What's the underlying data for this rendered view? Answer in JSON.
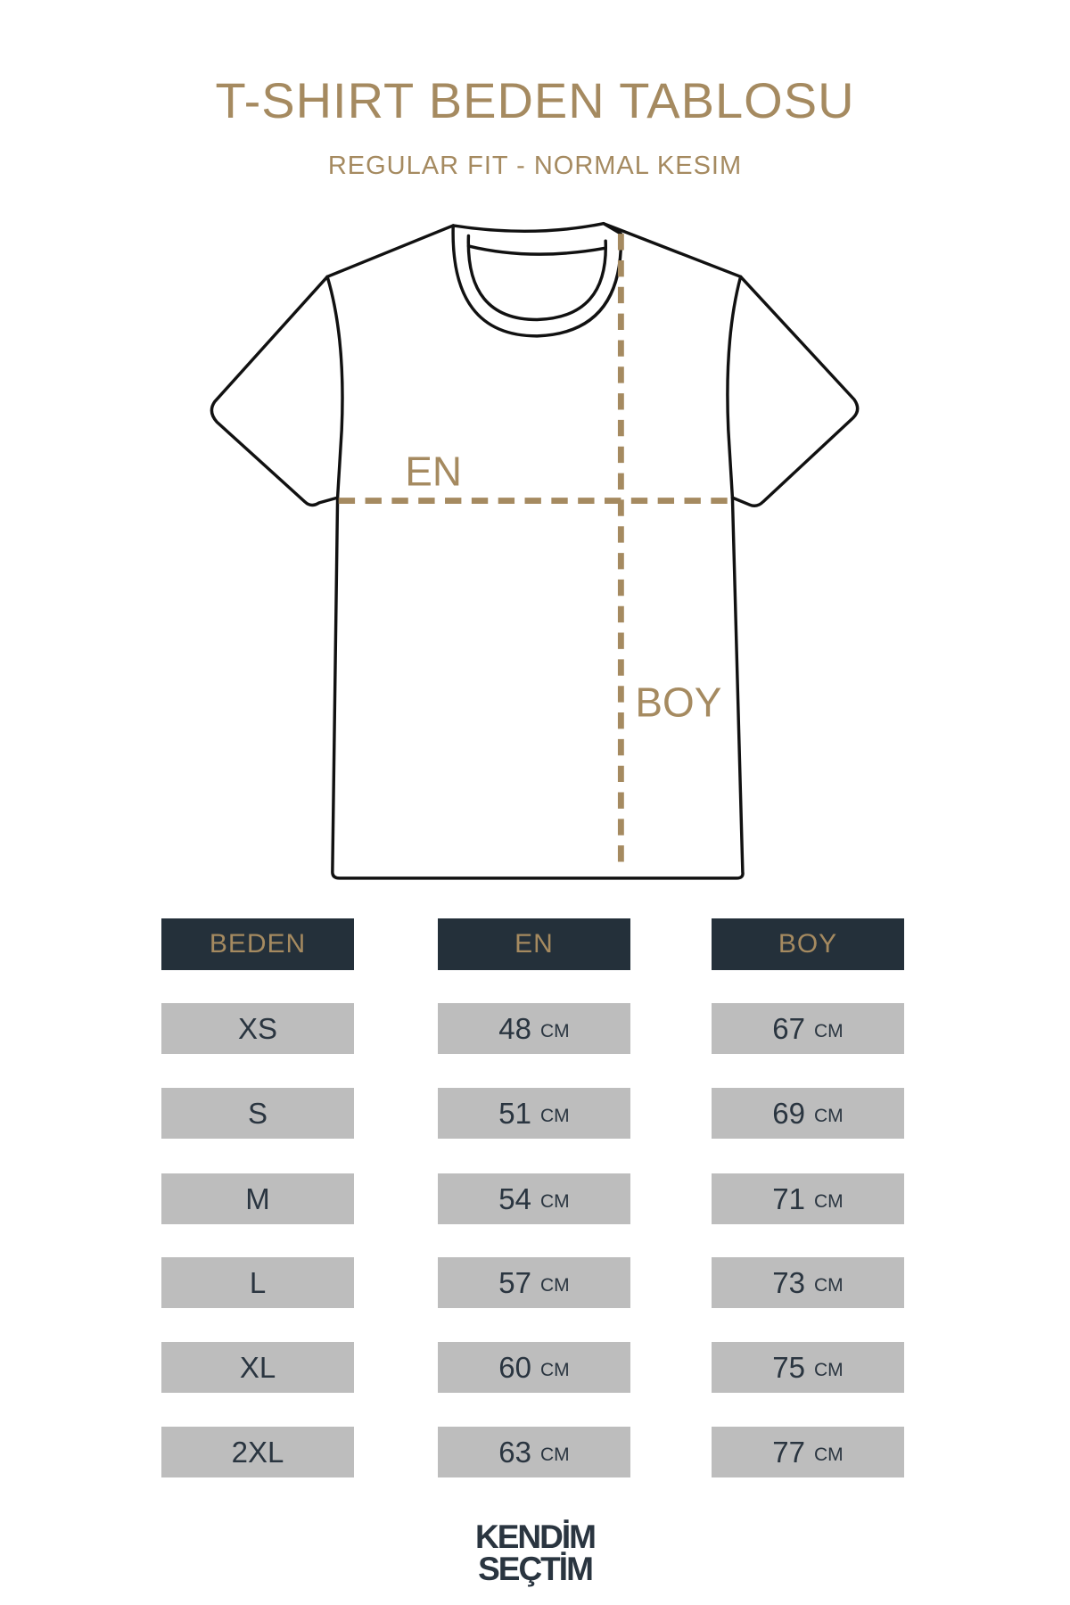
{
  "title": "T-SHIRT BEDEN TABLOSU",
  "subtitle": "REGULAR FIT - NORMAL KESIM",
  "diagram": {
    "en_label": "EN",
    "boy_label": "BOY"
  },
  "colors": {
    "accent": "#a58a60",
    "header_bg": "#24303a",
    "cell_bg": "#bdbdbd",
    "text_dark": "#2a3540"
  },
  "table": {
    "headers": [
      "BEDEN",
      "EN",
      "BOY"
    ],
    "unit": "CM",
    "rows": [
      {
        "size": "XS",
        "en": "48",
        "boy": "67"
      },
      {
        "size": "S",
        "en": "51",
        "boy": "69"
      },
      {
        "size": "M",
        "en": "54",
        "boy": "71"
      },
      {
        "size": "L",
        "en": "57",
        "boy": "73"
      },
      {
        "size": "XL",
        "en": "60",
        "boy": "75"
      },
      {
        "size": "2XL",
        "en": "63",
        "boy": "77"
      }
    ]
  },
  "logo": {
    "line1": "KENDİM",
    "line2": "SEÇTİM"
  }
}
